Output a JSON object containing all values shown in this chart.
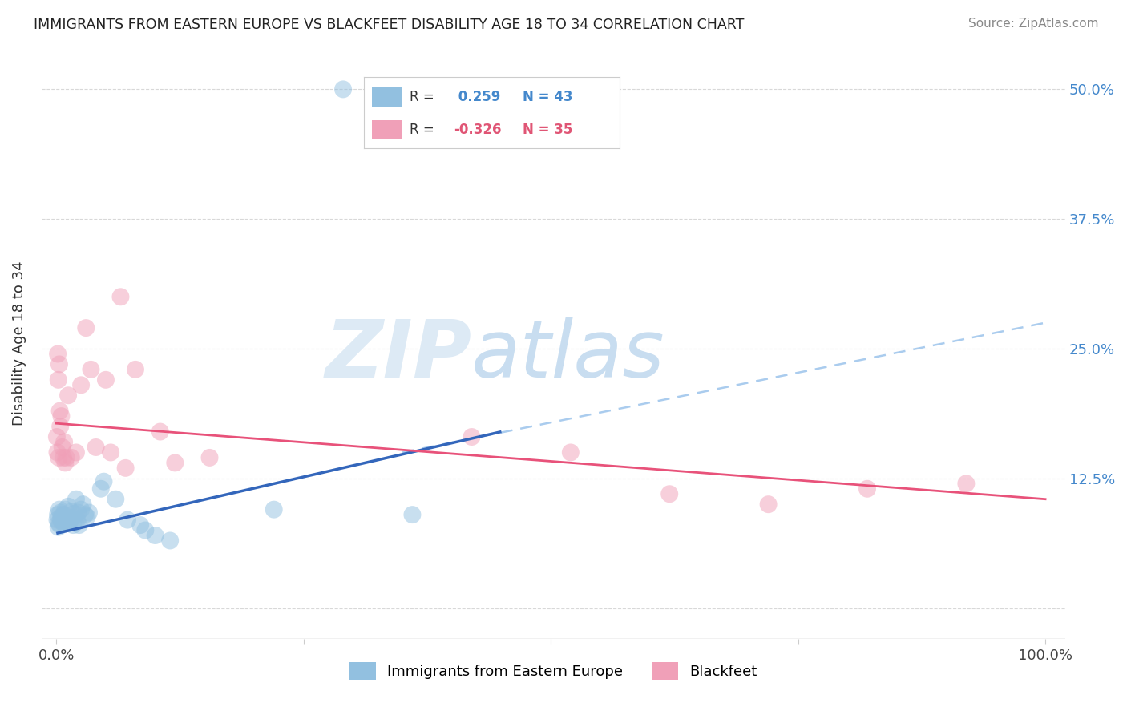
{
  "title": "IMMIGRANTS FROM EASTERN EUROPE VS BLACKFEET DISABILITY AGE 18 TO 34 CORRELATION CHART",
  "source": "Source: ZipAtlas.com",
  "ylabel": "Disability Age 18 to 34",
  "blue_R": 0.259,
  "blue_N": 43,
  "pink_R": -0.326,
  "pink_N": 35,
  "blue_color": "#92c0e0",
  "pink_color": "#f0a0b8",
  "blue_line_color": "#3366bb",
  "pink_line_color": "#e8527a",
  "dashed_line_color": "#aaccee",
  "blue_scatter": [
    [
      0.1,
      8.5
    ],
    [
      0.15,
      9.0
    ],
    [
      0.2,
      7.8
    ],
    [
      0.25,
      8.2
    ],
    [
      0.3,
      9.5
    ],
    [
      0.35,
      8.0
    ],
    [
      0.4,
      9.2
    ],
    [
      0.45,
      8.5
    ],
    [
      0.5,
      8.8
    ],
    [
      0.6,
      8.3
    ],
    [
      0.7,
      9.0
    ],
    [
      0.8,
      8.1
    ],
    [
      0.9,
      9.5
    ],
    [
      1.0,
      8.4
    ],
    [
      1.1,
      8.6
    ],
    [
      1.2,
      9.8
    ],
    [
      1.3,
      8.2
    ],
    [
      1.4,
      8.5
    ],
    [
      1.5,
      9.3
    ],
    [
      1.6,
      8.7
    ],
    [
      1.7,
      8.0
    ],
    [
      1.8,
      9.1
    ],
    [
      1.9,
      8.3
    ],
    [
      2.0,
      10.5
    ],
    [
      2.1,
      8.5
    ],
    [
      2.2,
      9.2
    ],
    [
      2.3,
      8.0
    ],
    [
      2.5,
      9.5
    ],
    [
      2.7,
      10.0
    ],
    [
      2.9,
      9.0
    ],
    [
      3.1,
      8.8
    ],
    [
      3.3,
      9.2
    ],
    [
      4.5,
      11.5
    ],
    [
      4.8,
      12.2
    ],
    [
      6.0,
      10.5
    ],
    [
      7.2,
      8.5
    ],
    [
      8.5,
      8.0
    ],
    [
      9.0,
      7.5
    ],
    [
      10.0,
      7.0
    ],
    [
      11.5,
      6.5
    ],
    [
      22.0,
      9.5
    ],
    [
      36.0,
      9.0
    ],
    [
      29.0,
      50.0
    ]
  ],
  "pink_scatter": [
    [
      0.05,
      16.5
    ],
    [
      0.1,
      15.0
    ],
    [
      0.15,
      24.5
    ],
    [
      0.2,
      22.0
    ],
    [
      0.25,
      14.5
    ],
    [
      0.3,
      23.5
    ],
    [
      0.35,
      19.0
    ],
    [
      0.4,
      17.5
    ],
    [
      0.5,
      18.5
    ],
    [
      0.6,
      15.5
    ],
    [
      0.7,
      14.5
    ],
    [
      0.8,
      16.0
    ],
    [
      0.9,
      14.0
    ],
    [
      1.0,
      14.5
    ],
    [
      1.2,
      20.5
    ],
    [
      1.5,
      14.5
    ],
    [
      2.0,
      15.0
    ],
    [
      2.5,
      21.5
    ],
    [
      3.0,
      27.0
    ],
    [
      3.5,
      23.0
    ],
    [
      4.0,
      15.5
    ],
    [
      5.0,
      22.0
    ],
    [
      5.5,
      15.0
    ],
    [
      6.5,
      30.0
    ],
    [
      7.0,
      13.5
    ],
    [
      8.0,
      23.0
    ],
    [
      10.5,
      17.0
    ],
    [
      12.0,
      14.0
    ],
    [
      15.5,
      14.5
    ],
    [
      42.0,
      16.5
    ],
    [
      52.0,
      15.0
    ],
    [
      62.0,
      11.0
    ],
    [
      72.0,
      10.0
    ],
    [
      82.0,
      11.5
    ],
    [
      92.0,
      12.0
    ]
  ],
  "blue_line_x0": 0,
  "blue_line_y0": 7.2,
  "blue_line_x1": 45,
  "blue_line_y1": 17.0,
  "blue_dash_x0": 35,
  "blue_dash_y0": 15.0,
  "blue_dash_x1": 100,
  "blue_dash_y1": 27.5,
  "pink_line_x0": 0,
  "pink_line_y0": 17.8,
  "pink_line_x1": 100,
  "pink_line_y1": 10.5,
  "xlim": [
    -1.5,
    102
  ],
  "ylim": [
    -3,
    54
  ],
  "yticks": [
    0,
    12.5,
    25.0,
    37.5,
    50.0
  ],
  "ytick_labels_right": [
    "",
    "12.5%",
    "25.0%",
    "37.5%",
    "50.0%"
  ],
  "xtick_positions": [
    0,
    25,
    50,
    75,
    100
  ],
  "xtick_labels": [
    "0.0%",
    "",
    "",
    "",
    "100.0%"
  ],
  "grid_color": "#d8d8d8",
  "background_color": "#ffffff",
  "watermark_zip": "ZIP",
  "watermark_atlas": "atlas",
  "watermark_color": "#ddeaf5"
}
